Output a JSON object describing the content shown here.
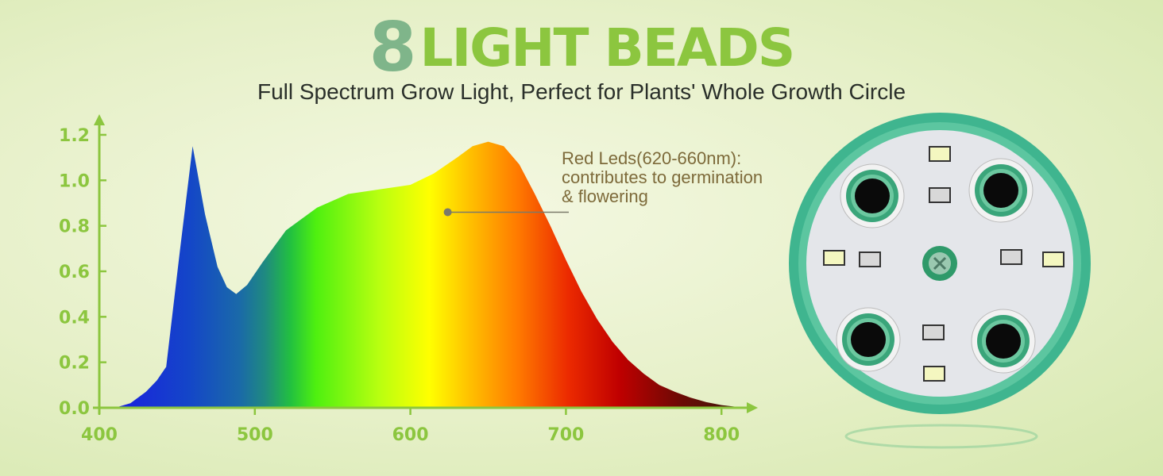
{
  "header": {
    "number": "8",
    "title": "LIGHT BEADS",
    "subtitle": "Full Spectrum Grow Light, Perfect for Plants' Whole Growth Circle"
  },
  "annotation": {
    "lines": [
      "Red Leds(620-660nm):",
      "contributes to germination",
      "& flowering"
    ],
    "point": {
      "x": 624,
      "y": 0.86
    }
  },
  "colors": {
    "axis": "#8cc63f",
    "title_number": "#7fb58a",
    "title": "#8cc63f",
    "annotation": "#7d6a3a"
  },
  "chart_data": {
    "type": "area",
    "title": "",
    "xlabel": "",
    "ylabel": "",
    "xlim": [
      400,
      820
    ],
    "ylim": [
      0,
      1.25
    ],
    "xticks": [
      400,
      500,
      600,
      700,
      800
    ],
    "yticks": [
      0.0,
      0.2,
      0.4,
      0.6,
      0.8,
      1.0,
      1.2
    ],
    "grid": false,
    "x": [
      410,
      420,
      430,
      437,
      443,
      452,
      460,
      468,
      476,
      482,
      488,
      495,
      505,
      520,
      540,
      560,
      580,
      600,
      615,
      630,
      640,
      650,
      660,
      670,
      680,
      690,
      700,
      710,
      720,
      730,
      740,
      750,
      760,
      770,
      780,
      790,
      800,
      815
    ],
    "y": [
      0,
      0.02,
      0.07,
      0.12,
      0.18,
      0.7,
      1.15,
      0.85,
      0.62,
      0.53,
      0.5,
      0.54,
      0.64,
      0.78,
      0.88,
      0.94,
      0.96,
      0.98,
      1.03,
      1.1,
      1.15,
      1.17,
      1.15,
      1.07,
      0.94,
      0.8,
      0.65,
      0.51,
      0.39,
      0.29,
      0.21,
      0.15,
      0.1,
      0.07,
      0.045,
      0.025,
      0.012,
      0
    ]
  },
  "product_image": {
    "description_icon": "led-board-image"
  }
}
